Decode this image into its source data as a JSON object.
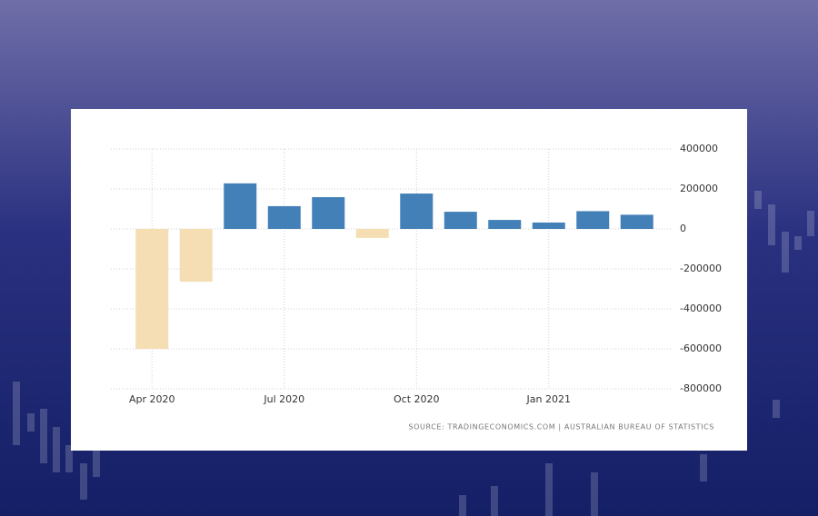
{
  "chart_data": {
    "type": "bar",
    "categories": [
      "Apr 2020",
      null,
      null,
      "Jul 2020",
      null,
      null,
      "Oct 2020",
      null,
      null,
      "Jan 2021",
      null,
      null
    ],
    "values": [
      -600000,
      -264000,
      228000,
      114000,
      159000,
      -45000,
      177000,
      86000,
      45000,
      32000,
      89000,
      71000
    ],
    "color": "#4480b8",
    "negative_color": "#f5deb3",
    "ylim": [
      -800000,
      400000
    ],
    "yticks": [
      -800000,
      -600000,
      -400000,
      -200000,
      0,
      200000,
      400000
    ],
    "grid": true,
    "source": "SOURCE: TRADINGECONOMICS.COM | AUSTRALIAN BUREAU OF STATISTICS"
  }
}
